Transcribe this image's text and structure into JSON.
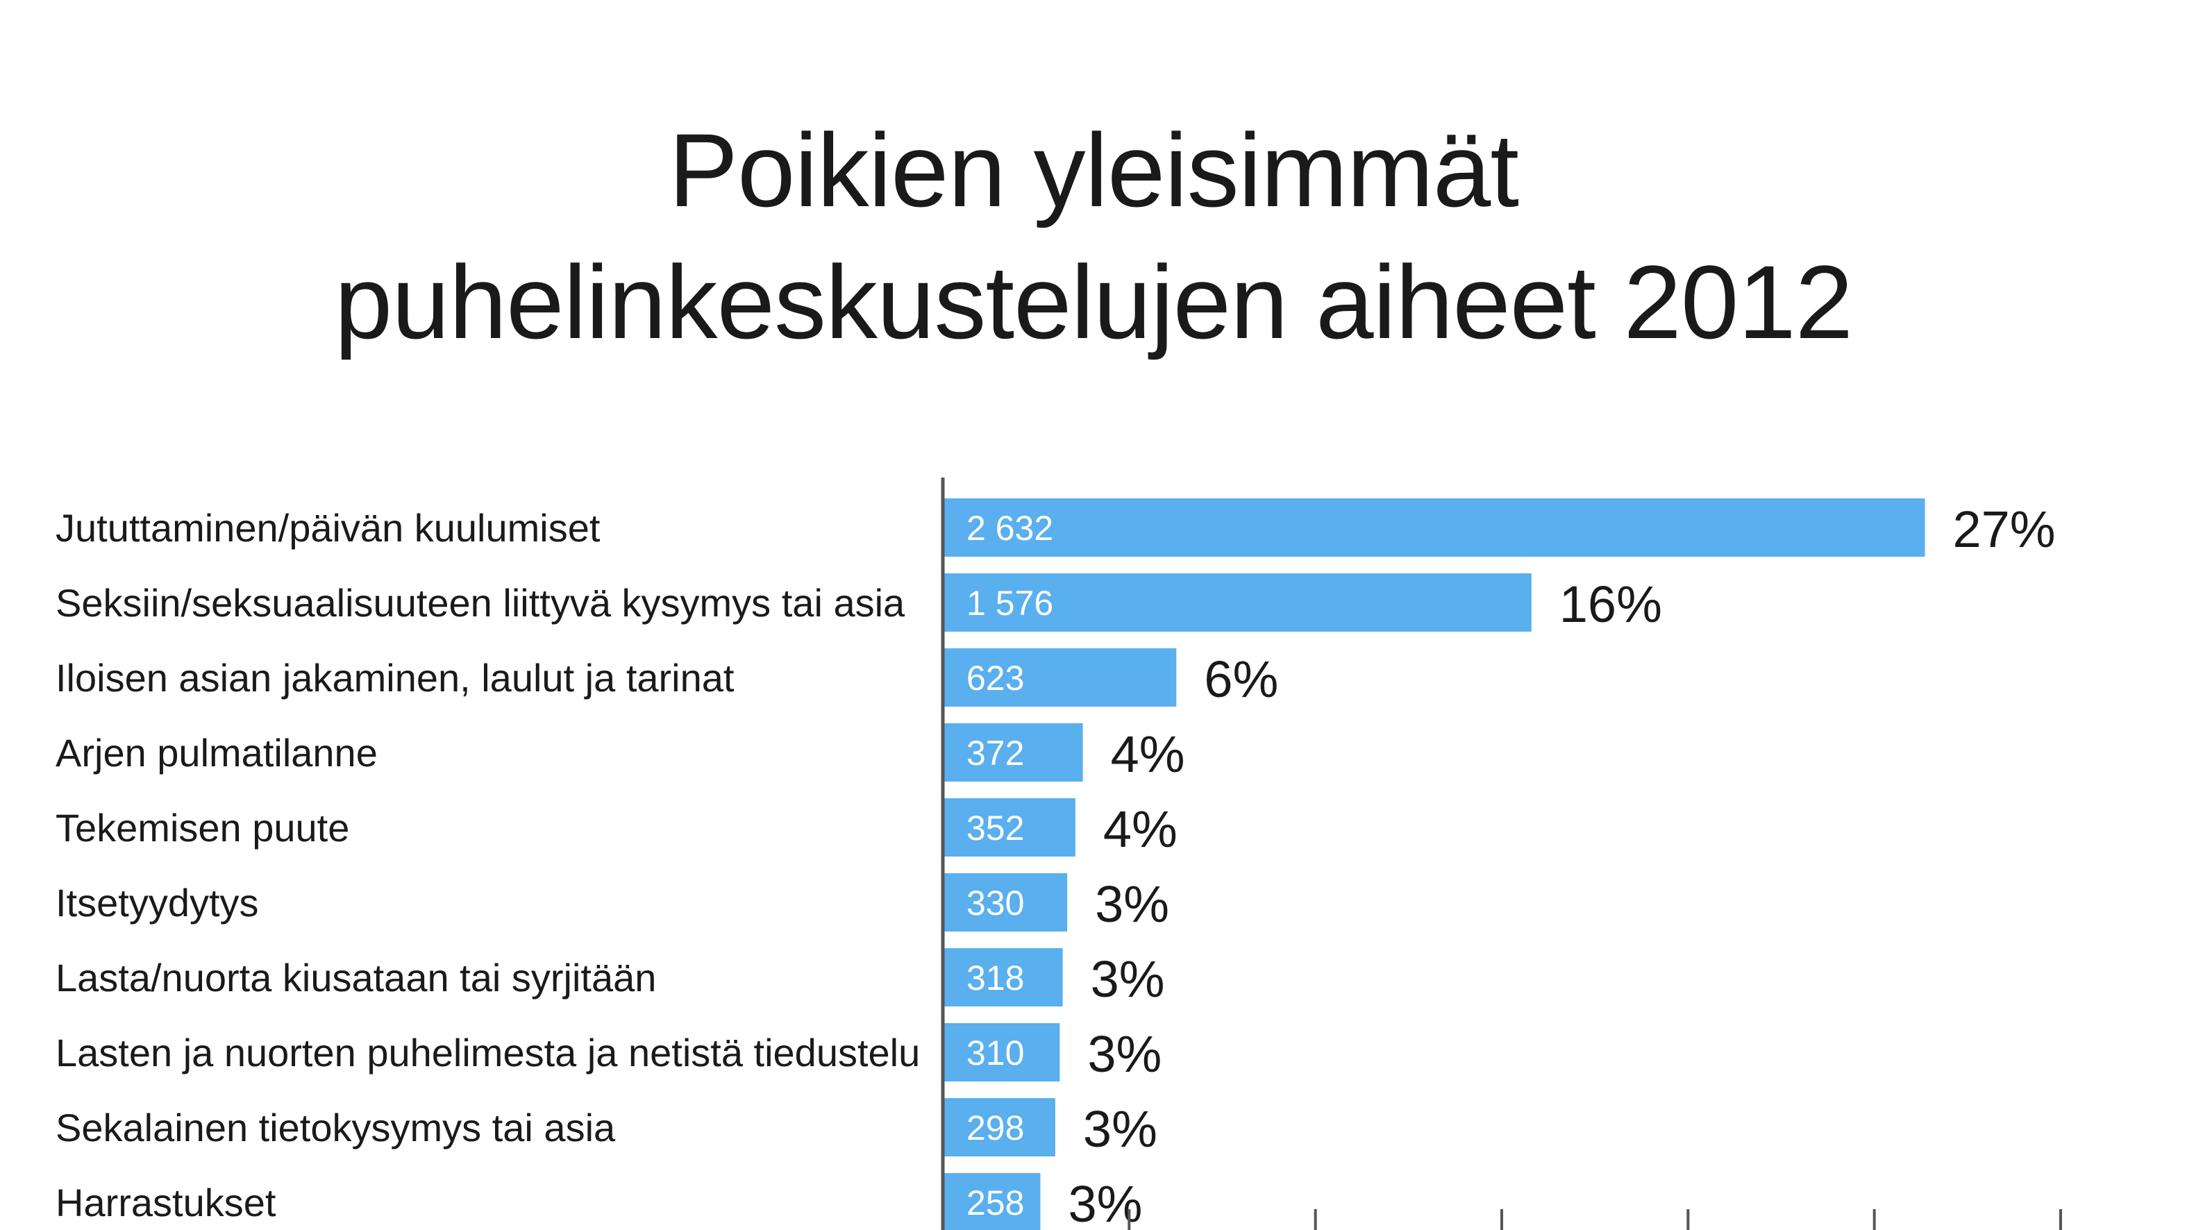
{
  "chart_data": {
    "type": "bar",
    "orientation": "horizontal",
    "title_lines": [
      "Poikien yleisimmät",
      "puhelinkeskustelujen aiheet 2012"
    ],
    "categories": [
      "Jututtaminen/päivän kuulumiset",
      "Seksiin/seksuaalisuuteen liittyvä kysymys tai asia",
      "Iloisen asian jakaminen, laulut ja tarinat",
      "Arjen pulmatilanne",
      "Tekemisen puute",
      "Itsetyydytys",
      "Lasta/nuorta kiusataan tai syrjitään",
      "Lasten ja nuorten puhelimesta ja netistä tiedustelu",
      "Sekalainen tietokysymys tai asia",
      "Harrastukset"
    ],
    "values": [
      2632,
      1576,
      623,
      372,
      352,
      330,
      318,
      310,
      298,
      258
    ],
    "value_labels": [
      "2 632",
      "1 576",
      "623",
      "372",
      "352",
      "330",
      "318",
      "310",
      "298",
      "258"
    ],
    "percent_labels": [
      "27%",
      "16%",
      "6%",
      "4%",
      "4%",
      "3%",
      "3%",
      "3%",
      "3%",
      "3%"
    ],
    "xlim": [
      0,
      3000
    ],
    "x_tick_values": [
      500,
      1000,
      1500,
      2000,
      2500,
      3000
    ],
    "bar_color": "#5aafee",
    "axis_color": "#555555",
    "xlabel": "",
    "ylabel": ""
  }
}
